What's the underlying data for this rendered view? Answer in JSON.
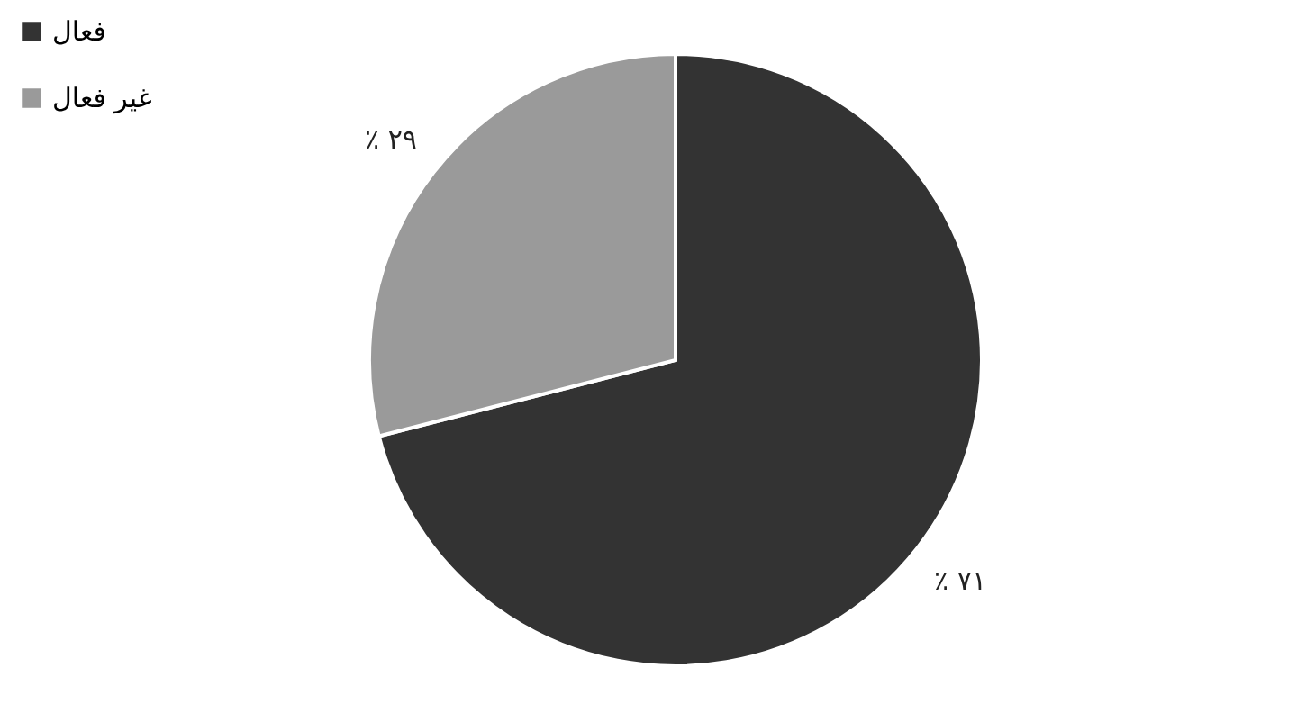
{
  "chart_data": {
    "type": "pie",
    "categories": [
      "فعال",
      "غير فعال"
    ],
    "values": [
      71,
      29
    ],
    "colors": [
      "#333333",
      "#9a9a9a"
    ],
    "value_labels": [
      "٪ ۷۱",
      "٪ ۲۹"
    ],
    "legend": "left"
  }
}
